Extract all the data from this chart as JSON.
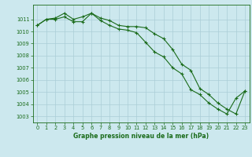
{
  "title": "Graphe pression niveau de la mer (hPa)",
  "background_color": "#cce8ee",
  "grid_color": "#aacdd6",
  "line_color": "#1a6b1a",
  "marker_color": "#1a6b1a",
  "xlim": [
    -0.5,
    23.5
  ],
  "ylim": [
    1002.5,
    1012.2
  ],
  "yticks": [
    1003,
    1004,
    1005,
    1006,
    1007,
    1008,
    1009,
    1010,
    1011
  ],
  "xticks": [
    0,
    1,
    2,
    3,
    4,
    5,
    6,
    7,
    8,
    9,
    10,
    11,
    12,
    13,
    14,
    15,
    16,
    17,
    18,
    19,
    20,
    21,
    22,
    23
  ],
  "series1_x": [
    0,
    1,
    2,
    3,
    4,
    5,
    6,
    7,
    8,
    9,
    10,
    11,
    12,
    13,
    14,
    15,
    16,
    17,
    18,
    19,
    20,
    21,
    22,
    23
  ],
  "series1_y": [
    1010.5,
    1011.0,
    1011.1,
    1011.5,
    1011.0,
    1011.2,
    1011.5,
    1011.1,
    1010.9,
    1010.5,
    1010.4,
    1010.4,
    1010.3,
    1009.8,
    1009.4,
    1008.5,
    1007.3,
    1006.8,
    1005.3,
    1004.8,
    1004.1,
    1003.6,
    1003.2,
    1005.1
  ],
  "series2_x": [
    0,
    1,
    2,
    3,
    4,
    5,
    6,
    7,
    8,
    9,
    10,
    11,
    12,
    13,
    14,
    15,
    16,
    17,
    18,
    19,
    20,
    21,
    22,
    23
  ],
  "series2_y": [
    1010.5,
    1011.0,
    1011.0,
    1011.2,
    1010.8,
    1010.8,
    1011.5,
    1010.9,
    1010.5,
    1010.2,
    1010.1,
    1009.9,
    1009.1,
    1008.3,
    1007.9,
    1007.0,
    1006.5,
    1005.2,
    1004.8,
    1004.1,
    1003.6,
    1003.2,
    1004.5,
    1005.1
  ],
  "xlabel_fontsize": 5.5,
  "tick_fontsize": 4.8,
  "linewidth": 0.8,
  "markersize": 3.0
}
